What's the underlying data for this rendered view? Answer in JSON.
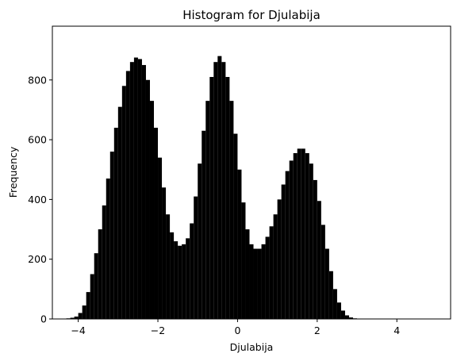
{
  "chart_data": {
    "type": "bar",
    "title": "Histogram for Djulabija",
    "xlabel": "Djulabija",
    "ylabel": "Frequency",
    "xlim": [
      -4.65,
      5.35
    ],
    "ylim": [
      0,
      980
    ],
    "xticks": [
      -4,
      -2,
      0,
      2,
      4
    ],
    "xtick_labels": [
      "−4",
      "−2",
      "0",
      "2",
      "4"
    ],
    "yticks": [
      0,
      200,
      400,
      600,
      800
    ],
    "ytick_labels": [
      "0",
      "200",
      "400",
      "600",
      "800"
    ],
    "grid": false,
    "legend": "none",
    "bar_color": "#000000",
    "bins": {
      "start": -4.3,
      "width": 0.1,
      "values": [
        2,
        4,
        8,
        20,
        45,
        90,
        150,
        220,
        300,
        380,
        470,
        560,
        640,
        710,
        780,
        830,
        860,
        875,
        870,
        850,
        800,
        730,
        640,
        540,
        440,
        350,
        290,
        260,
        245,
        250,
        270,
        320,
        410,
        520,
        630,
        730,
        810,
        860,
        880,
        860,
        810,
        730,
        620,
        500,
        390,
        300,
        250,
        235,
        235,
        250,
        275,
        310,
        350,
        400,
        450,
        495,
        530,
        555,
        570,
        570,
        555,
        520,
        465,
        395,
        315,
        235,
        160,
        100,
        55,
        28,
        12,
        5,
        2
      ]
    }
  }
}
